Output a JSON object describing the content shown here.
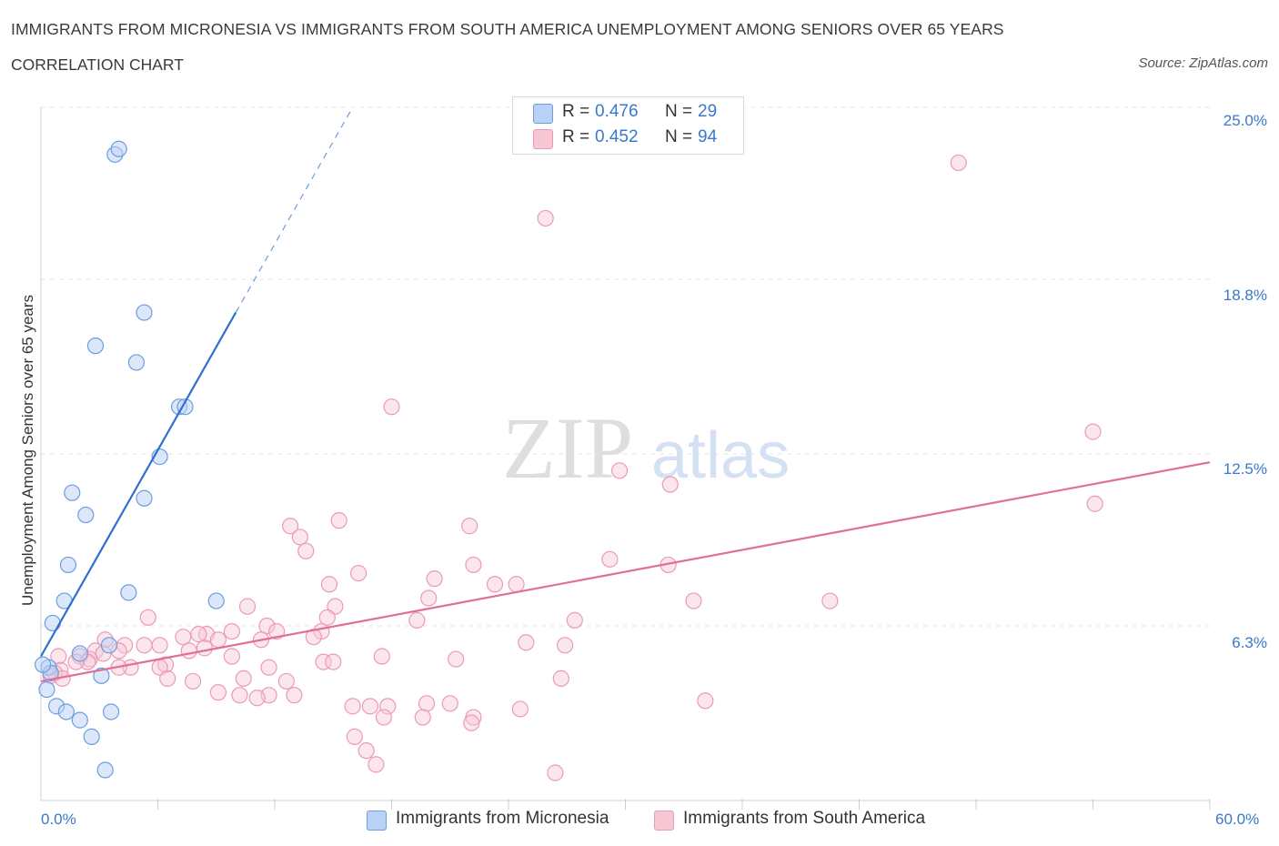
{
  "title": "IMMIGRANTS FROM MICRONESIA VS IMMIGRANTS FROM SOUTH AMERICA UNEMPLOYMENT AMONG SENIORS OVER 65 YEARS",
  "subtitle": "CORRELATION CHART",
  "source": "Source: ZipAtlas.com",
  "watermark": {
    "zip": "ZIP",
    "atlas": "atlas"
  },
  "legend": {
    "micronesia": {
      "r_label": "R = ",
      "r_value": "0.476",
      "n_label": "N = ",
      "n_value": "29"
    },
    "south_america": {
      "r_label": "R = ",
      "r_value": "0.452",
      "n_label": "N = ",
      "n_value": "94"
    }
  },
  "colors": {
    "micronesia_fill": "#b9d1f5",
    "micronesia_stroke": "#6b9de0",
    "micronesia_line": "#2f6fcf",
    "south_america_fill": "#f8c7d6",
    "south_america_stroke": "#eb9ab4",
    "south_america_line": "#e06f98",
    "tick_text": "#3a78c9",
    "grid": "#e6e6e6"
  },
  "chart_data": {
    "type": "scatter",
    "title": "IMMIGRANTS FROM MICRONESIA VS IMMIGRANTS FROM SOUTH AMERICA UNEMPLOYMENT AMONG SENIORS OVER 65 YEARS",
    "xlabel": "",
    "ylabel": "Unemployment Among Seniors over 65 years",
    "xlim": [
      0,
      60
    ],
    "ylim": [
      0,
      25
    ],
    "y_ticks": [
      6.3,
      12.5,
      18.8,
      25.0
    ],
    "y_tick_labels": [
      "6.3%",
      "12.5%",
      "18.8%",
      "25.0%"
    ],
    "x_tick_labels": [
      "0.0%",
      "60.0%"
    ],
    "grid": true,
    "legend_position": "top-center",
    "series": [
      {
        "name": "Immigrants from Micronesia",
        "R": 0.476,
        "N": 29,
        "trend": {
          "x0": 0,
          "y0": 5.2,
          "x1": 10,
          "y1": 17.6,
          "dashed_to_x": 16,
          "dashed_to_y": 25
        },
        "points": [
          [
            3.8,
            23.3
          ],
          [
            4.0,
            23.5
          ],
          [
            5.3,
            17.6
          ],
          [
            2.8,
            16.4
          ],
          [
            4.9,
            15.8
          ],
          [
            7.1,
            14.2
          ],
          [
            7.4,
            14.2
          ],
          [
            6.1,
            12.4
          ],
          [
            1.6,
            11.1
          ],
          [
            2.3,
            10.3
          ],
          [
            5.3,
            10.9
          ],
          [
            1.4,
            8.5
          ],
          [
            4.5,
            7.5
          ],
          [
            1.2,
            7.2
          ],
          [
            9.0,
            7.2
          ],
          [
            0.6,
            6.4
          ],
          [
            3.5,
            5.6
          ],
          [
            2.0,
            5.3
          ],
          [
            0.4,
            4.8
          ],
          [
            0.5,
            4.6
          ],
          [
            3.1,
            4.5
          ],
          [
            0.3,
            4.0
          ],
          [
            0.8,
            3.4
          ],
          [
            1.3,
            3.2
          ],
          [
            3.6,
            3.2
          ],
          [
            2.0,
            2.9
          ],
          [
            2.6,
            2.3
          ],
          [
            3.3,
            1.1
          ],
          [
            0.1,
            4.9
          ]
        ]
      },
      {
        "name": "Immigrants from South America",
        "R": 0.452,
        "N": 94,
        "trend": {
          "x0": 0,
          "y0": 4.3,
          "x1": 60,
          "y1": 12.2
        },
        "points": [
          [
            47.1,
            23.0
          ],
          [
            25.9,
            21.0
          ],
          [
            18.0,
            14.2
          ],
          [
            54.0,
            13.3
          ],
          [
            29.7,
            11.9
          ],
          [
            32.3,
            11.4
          ],
          [
            54.1,
            10.7
          ],
          [
            15.3,
            10.1
          ],
          [
            12.8,
            9.9
          ],
          [
            22.0,
            9.9
          ],
          [
            13.3,
            9.5
          ],
          [
            13.6,
            9.0
          ],
          [
            29.2,
            8.7
          ],
          [
            22.2,
            8.5
          ],
          [
            32.2,
            8.5
          ],
          [
            16.3,
            8.2
          ],
          [
            20.2,
            8.0
          ],
          [
            14.8,
            7.8
          ],
          [
            23.3,
            7.8
          ],
          [
            24.4,
            7.8
          ],
          [
            19.9,
            7.3
          ],
          [
            33.5,
            7.2
          ],
          [
            40.5,
            7.2
          ],
          [
            10.6,
            7.0
          ],
          [
            15.1,
            7.0
          ],
          [
            14.7,
            6.6
          ],
          [
            5.5,
            6.6
          ],
          [
            19.3,
            6.5
          ],
          [
            27.4,
            6.5
          ],
          [
            11.6,
            6.3
          ],
          [
            12.1,
            6.1
          ],
          [
            8.5,
            6.0
          ],
          [
            9.8,
            6.1
          ],
          [
            14.4,
            6.1
          ],
          [
            8.1,
            6.0
          ],
          [
            14.0,
            5.9
          ],
          [
            7.3,
            5.9
          ],
          [
            9.1,
            5.8
          ],
          [
            11.3,
            5.8
          ],
          [
            3.3,
            5.8
          ],
          [
            24.9,
            5.7
          ],
          [
            6.1,
            5.6
          ],
          [
            26.9,
            5.6
          ],
          [
            4.3,
            5.6
          ],
          [
            5.3,
            5.6
          ],
          [
            8.4,
            5.5
          ],
          [
            7.6,
            5.4
          ],
          [
            4.0,
            5.4
          ],
          [
            2.8,
            5.4
          ],
          [
            3.2,
            5.3
          ],
          [
            0.9,
            5.2
          ],
          [
            2.0,
            5.2
          ],
          [
            17.5,
            5.2
          ],
          [
            9.8,
            5.2
          ],
          [
            2.5,
            5.1
          ],
          [
            21.3,
            5.1
          ],
          [
            14.5,
            5.0
          ],
          [
            2.4,
            5.0
          ],
          [
            1.8,
            5.0
          ],
          [
            4.6,
            4.8
          ],
          [
            4.0,
            4.8
          ],
          [
            6.4,
            4.9
          ],
          [
            11.7,
            4.8
          ],
          [
            15.0,
            5.0
          ],
          [
            6.1,
            4.8
          ],
          [
            1.0,
            4.7
          ],
          [
            0.7,
            4.6
          ],
          [
            0.5,
            4.5
          ],
          [
            1.1,
            4.4
          ],
          [
            6.5,
            4.4
          ],
          [
            10.4,
            4.4
          ],
          [
            7.8,
            4.3
          ],
          [
            12.6,
            4.3
          ],
          [
            26.7,
            4.4
          ],
          [
            9.1,
            3.9
          ],
          [
            10.2,
            3.8
          ],
          [
            11.7,
            3.8
          ],
          [
            13.0,
            3.8
          ],
          [
            11.1,
            3.7
          ],
          [
            34.1,
            3.6
          ],
          [
            19.8,
            3.5
          ],
          [
            21.0,
            3.5
          ],
          [
            17.8,
            3.4
          ],
          [
            16.0,
            3.4
          ],
          [
            16.9,
            3.4
          ],
          [
            24.6,
            3.3
          ],
          [
            17.6,
            3.0
          ],
          [
            19.6,
            3.0
          ],
          [
            22.2,
            3.0
          ],
          [
            22.1,
            2.8
          ],
          [
            16.1,
            2.3
          ],
          [
            16.7,
            1.8
          ],
          [
            17.2,
            1.3
          ],
          [
            26.4,
            1.0
          ]
        ]
      }
    ]
  },
  "bottom_legend": {
    "micronesia_label": "Immigrants from Micronesia",
    "south_america_label": "Immigrants from South America"
  }
}
